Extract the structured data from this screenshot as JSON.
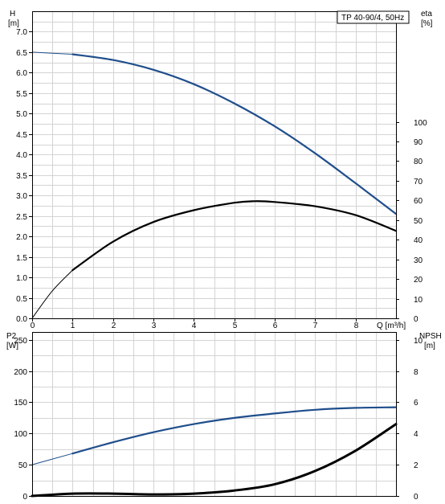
{
  "chart_data": [
    {
      "type": "line",
      "title": "TP 40-90/4, 50Hz",
      "x_axis": {
        "label": "Q [m³/h]",
        "range": [
          0,
          9
        ],
        "ticks": [
          "0",
          "1",
          "2",
          "3",
          "4",
          "5",
          "6",
          "7",
          "8"
        ]
      },
      "y_axis_left": {
        "label_line1": "H",
        "label_line2": "[m]",
        "range": [
          0,
          7.5
        ],
        "ticks": [
          "0.0",
          "0.5",
          "1.0",
          "1.5",
          "2.0",
          "2.5",
          "3.0",
          "3.5",
          "4.0",
          "4.5",
          "5.0",
          "5.5",
          "6.0",
          "6.5",
          "7.0"
        ]
      },
      "y_axis_right": {
        "label_line1": "eta",
        "label_line2": "[%]",
        "range": [
          0,
          156.25
        ],
        "ticks": [
          "0",
          "10",
          "20",
          "30",
          "40",
          "50",
          "60",
          "70",
          "80",
          "90",
          "100"
        ]
      },
      "grid": true,
      "series": [
        {
          "axis": "left",
          "color": "#1f4e8c",
          "x_thin": [
            0,
            1
          ],
          "y_thin": [
            6.5,
            6.45
          ],
          "x": [
            1,
            2,
            3,
            4,
            5,
            6,
            7,
            8,
            9
          ],
          "y": [
            6.45,
            6.31,
            6.07,
            5.72,
            5.25,
            4.69,
            4.03,
            3.3,
            2.55
          ]
        },
        {
          "axis": "right",
          "color": "#000000",
          "x_thin": [
            0,
            0.5,
            1
          ],
          "y_thin": [
            0,
            14,
            24.5
          ],
          "x": [
            1,
            2,
            3,
            4,
            5,
            5.5,
            6,
            7,
            8,
            9
          ],
          "y": [
            24.5,
            39,
            49,
            55,
            58.8,
            59.6,
            59.2,
            57,
            52.5,
            44.5
          ]
        }
      ]
    },
    {
      "type": "line",
      "x_axis": {
        "range": [
          0,
          9
        ]
      },
      "y_axis_left": {
        "label_line1": "P2",
        "label_line2": "[W]",
        "range": [
          0,
          262.5
        ],
        "ticks": [
          "0",
          "50",
          "100",
          "150",
          "200",
          "250"
        ]
      },
      "y_axis_right": {
        "label_line1": "NPSH",
        "label_line2": "[m]",
        "range": [
          0,
          10.5
        ],
        "ticks": [
          "0",
          "2",
          "4",
          "6",
          "8",
          "10"
        ]
      },
      "grid": true,
      "series": [
        {
          "axis": "left",
          "color": "#1f4e8c",
          "x_thin": [
            0,
            1
          ],
          "y_thin": [
            50,
            68
          ],
          "x": [
            1,
            2,
            3,
            4,
            5,
            6,
            7,
            8,
            9
          ],
          "y": [
            68,
            86,
            102,
            115,
            125,
            132,
            138,
            141,
            142
          ]
        },
        {
          "axis": "right",
          "color": "#000000",
          "x": [
            0,
            1,
            2,
            3,
            4,
            5,
            6,
            7,
            8,
            9
          ],
          "y": [
            0.0,
            0.15,
            0.15,
            0.1,
            0.15,
            0.35,
            0.75,
            1.6,
            2.9,
            4.6
          ]
        }
      ]
    }
  ]
}
